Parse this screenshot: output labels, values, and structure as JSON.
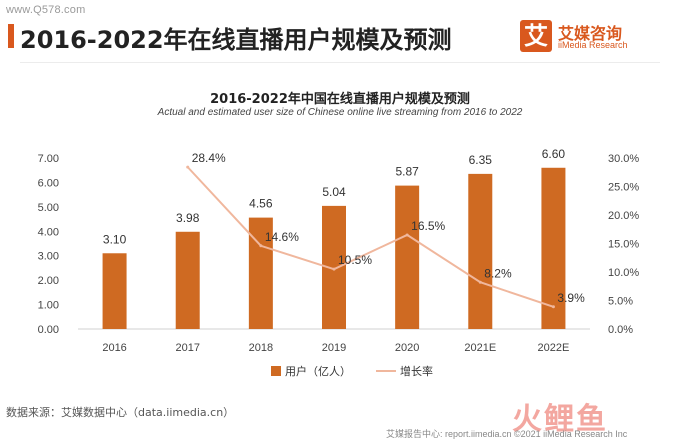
{
  "watermark": "www.Q578.com",
  "page_title": "2016-2022年在线直播用户规模及预测",
  "logo": {
    "mark": "艾",
    "name": "艾媒咨询",
    "sub": "iiMedia Research"
  },
  "source": "数据来源：艾媒数据中心（data.iimedia.cn）",
  "footer_brand": "火鲤鱼",
  "footer_right": "艾媒报告中心: report.iimedia.cn ©2021 iiMedia Research Inc",
  "colors": {
    "bar": "#cf6a22",
    "line": "#f0b79d",
    "accent": "#d9581e"
  },
  "chart_data": {
    "type": "bar",
    "title": "2016-2022年中国在线直播用户规模及预测",
    "subtitle": "Actual and estimated user size of Chinese online live streaming from 2016 to 2022",
    "categories": [
      "2016",
      "2017",
      "2018",
      "2019",
      "2020",
      "2021E",
      "2022E"
    ],
    "series": [
      {
        "name": "用户（亿人）",
        "type": "bar",
        "axis": "left",
        "values": [
          3.1,
          3.98,
          4.56,
          5.04,
          5.87,
          6.35,
          6.6
        ],
        "labels": [
          "3.10",
          "3.98",
          "4.56",
          "5.04",
          "5.87",
          "6.35",
          "6.60"
        ]
      },
      {
        "name": "增长率",
        "type": "line",
        "axis": "right",
        "values": [
          null,
          28.4,
          14.6,
          10.5,
          16.5,
          8.2,
          3.9
        ],
        "labels": [
          "",
          "28.4%",
          "14.6%",
          "10.5%",
          "16.5%",
          "8.2%",
          "3.9%"
        ]
      }
    ],
    "ylim_left": [
      0,
      7
    ],
    "yticks_left": [
      "0.00",
      "1.00",
      "2.00",
      "3.00",
      "4.00",
      "5.00",
      "6.00",
      "7.00"
    ],
    "ylim_right": [
      0,
      30
    ],
    "yticks_right": [
      "0.0%",
      "5.0%",
      "10.0%",
      "15.0%",
      "20.0%",
      "25.0%",
      "30.0%"
    ],
    "grid": false,
    "legend": "bottom-center"
  }
}
